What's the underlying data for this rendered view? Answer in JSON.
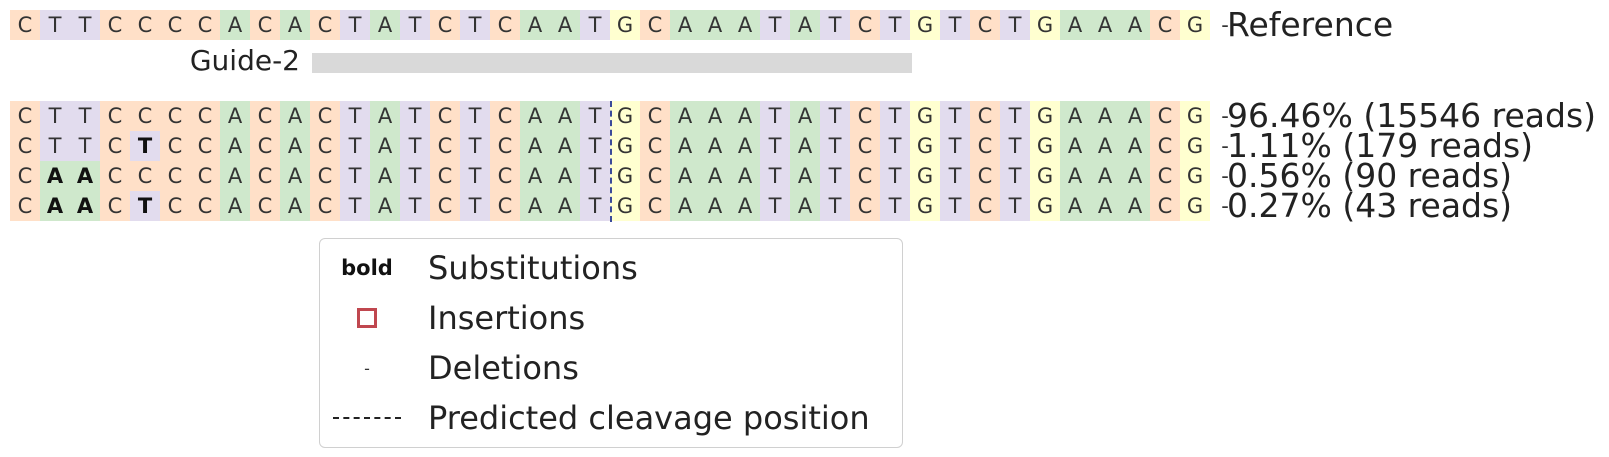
{
  "colors": {
    "A": "#cfe8cc",
    "C": "#ffe0c8",
    "G": "#ffffd0",
    "T": "#e2dcee",
    "-": "transparent",
    "cleavage_line": "#3b4a9a",
    "guide_bar": "#d9d9d9",
    "insertion_box": "#c0474f"
  },
  "reference": {
    "sequence": "CTTCCCCACACTATCTCAATGCAAATATCTGTCTGAAACG-",
    "label": "Reference"
  },
  "guide": {
    "label": "Guide-2"
  },
  "alleles": [
    {
      "sequence": "CTTCCCCACACTATCTCAATGCAAATATCTGTCTGAAACG-",
      "substitutions": [],
      "label": "96.46% (15546 reads)"
    },
    {
      "sequence": "CTTCTCCACACTATCTCAATGCAAATATCTGTCTGAAACG-",
      "substitutions": [
        4
      ],
      "label": "1.11% (179 reads)"
    },
    {
      "sequence": "CAACCCCACACTATCTCAATGCAAATATCTGTCTGAAACG-",
      "substitutions": [
        1,
        2
      ],
      "label": "0.56% (90 reads)"
    },
    {
      "sequence": "CAACTCCACACTATCTCAATGCAAATATCTGTCTGAAACG-",
      "substitutions": [
        1,
        2,
        4
      ],
      "label": "0.27% (43 reads)"
    }
  ],
  "legend": {
    "items": [
      {
        "symbol_text": "bold",
        "symbol": "bold",
        "label": "Substitutions"
      },
      {
        "symbol_text": "",
        "symbol": "box",
        "label": "Insertions"
      },
      {
        "symbol_text": "-",
        "symbol": "dash",
        "label": "Deletions"
      },
      {
        "symbol_text": "",
        "symbol": "dashed-line",
        "label": "Predicted cleavage position"
      }
    ]
  }
}
